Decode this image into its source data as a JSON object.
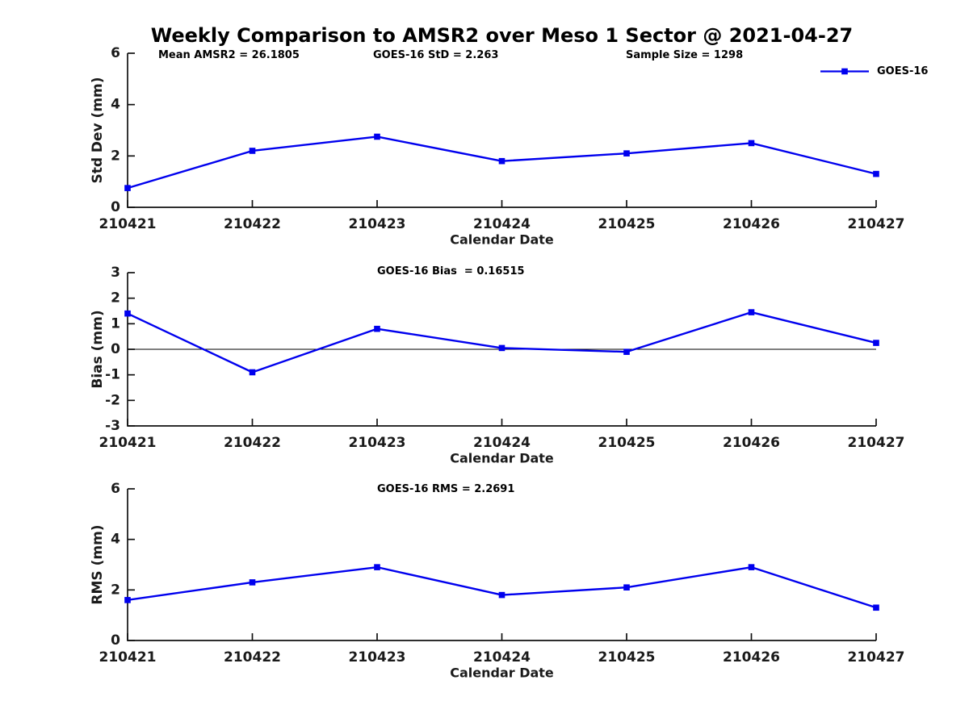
{
  "page_title": "Weekly Comparison to AMSR2 over Meso 1 Sector @ 2021-04-27",
  "legend": {
    "label": "GOES-16",
    "marker": "square"
  },
  "colors": {
    "line": "#0000EE",
    "text": "#1a1a1a",
    "axis": "#111111",
    "zero_line": "#000000",
    "title": "#000000"
  },
  "chart_data": [
    {
      "type": "line",
      "name": "std-dev",
      "ylabel": "Std Dev (mm)",
      "xlabel": "Calendar Date",
      "ylim": [
        0,
        6
      ],
      "yticks": [
        0,
        2,
        4,
        6
      ],
      "grid": false,
      "legend_position": "upper-right",
      "categories": [
        "210421",
        "210422",
        "210423",
        "210424",
        "210425",
        "210426",
        "210427"
      ],
      "series": [
        {
          "name": "GOES-16",
          "values": [
            0.75,
            2.2,
            2.75,
            1.8,
            2.1,
            2.5,
            1.3
          ]
        }
      ],
      "annotations": [
        {
          "text": "Mean AMSR2 = 26.1805"
        },
        {
          "text": "GOES-16 StD = 2.263"
        },
        {
          "text": "Sample Size = 1298"
        }
      ],
      "zero_line": false
    },
    {
      "type": "line",
      "name": "bias",
      "ylabel": "Bias (mm)",
      "xlabel": "Calendar Date",
      "ylim": [
        -3,
        3
      ],
      "yticks": [
        3,
        2,
        1,
        0,
        -1,
        -2,
        -3
      ],
      "grid": false,
      "categories": [
        "210421",
        "210422",
        "210423",
        "210424",
        "210425",
        "210426",
        "210427"
      ],
      "series": [
        {
          "name": "GOES-16",
          "values": [
            1.4,
            -0.9,
            0.8,
            0.05,
            -0.1,
            1.45,
            0.25
          ]
        }
      ],
      "annotations": [
        {
          "text": "GOES-16 Bias  = 0.16515"
        }
      ],
      "zero_line": true
    },
    {
      "type": "line",
      "name": "rms",
      "ylabel": "RMS (mm)",
      "xlabel": "Calendar Date",
      "ylim": [
        0,
        6
      ],
      "yticks": [
        0,
        2,
        4,
        6
      ],
      "grid": false,
      "categories": [
        "210421",
        "210422",
        "210423",
        "210424",
        "210425",
        "210426",
        "210427"
      ],
      "series": [
        {
          "name": "GOES-16",
          "values": [
            1.6,
            2.3,
            2.9,
            1.8,
            2.1,
            2.9,
            1.3
          ]
        }
      ],
      "annotations": [
        {
          "text": "GOES-16 RMS = 2.2691"
        }
      ],
      "zero_line": false
    }
  ]
}
